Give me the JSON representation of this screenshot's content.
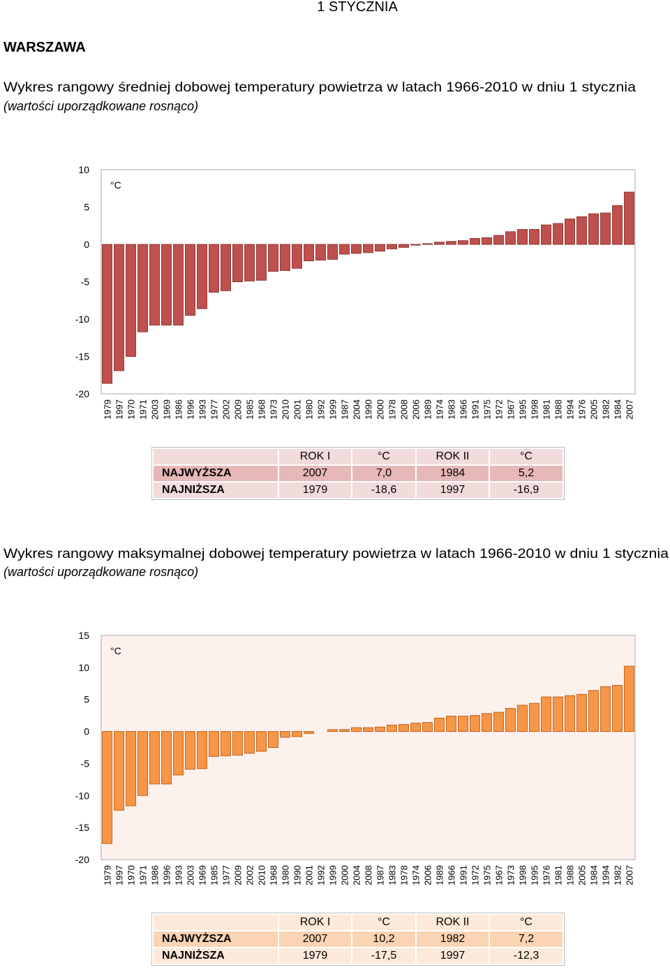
{
  "header": {
    "title": "1 STYCZNIA",
    "city": "WARSZAWA"
  },
  "chart_data": [
    {
      "type": "bar",
      "title": "Wykres rangowy średniej dobowej temperatury powietrza w latach 1966-2010 w dniu 1 stycznia",
      "subtitle": "(wartości uporządkowane rosnąco)",
      "unit_label": "°C",
      "categories": [
        "1979",
        "1997",
        "1970",
        "1971",
        "2003",
        "1969",
        "1986",
        "1996",
        "1993",
        "1977",
        "2002",
        "2009",
        "1985",
        "1968",
        "1973",
        "2010",
        "2001",
        "1980",
        "1992",
        "1999",
        "1987",
        "2004",
        "1990",
        "2000",
        "1978",
        "2008",
        "2006",
        "1989",
        "1974",
        "1983",
        "1966",
        "1991",
        "1975",
        "1972",
        "1967",
        "1995",
        "1998",
        "1981",
        "1988",
        "1994",
        "1976",
        "2005",
        "1982",
        "1984",
        "2007"
      ],
      "values": [
        -18.6,
        -16.9,
        -15.0,
        -11.7,
        -10.8,
        -10.8,
        -10.8,
        -9.5,
        -8.6,
        -6.4,
        -6.2,
        -5.0,
        -4.9,
        -4.8,
        -3.6,
        -3.5,
        -3.2,
        -2.2,
        -2.1,
        -2.0,
        -1.3,
        -1.2,
        -1.1,
        -0.9,
        -0.6,
        -0.4,
        -0.1,
        0.1,
        0.3,
        0.4,
        0.5,
        0.8,
        0.9,
        1.2,
        1.7,
        2.0,
        2.0,
        2.6,
        2.8,
        3.4,
        3.7,
        4.1,
        4.2,
        5.2,
        7.0
      ],
      "color": "#c0504d",
      "ylim": [
        -20,
        10
      ],
      "yticks": [
        10,
        5,
        0,
        -5,
        -10,
        -15,
        -20
      ]
    },
    {
      "type": "bar",
      "title": "Wykres rangowy maksymalnej dobowej temperatury powietrza w latach 1966-2010 w dniu 1 stycznia",
      "subtitle": "(wartości uporządkowane rosnąco)",
      "unit_label": "°C",
      "categories": [
        "1979",
        "1997",
        "1970",
        "1971",
        "1986",
        "1996",
        "1993",
        "2003",
        "1969",
        "1985",
        "1977",
        "2009",
        "2002",
        "2010",
        "1968",
        "1980",
        "1990",
        "2001",
        "1992",
        "1999",
        "2000",
        "2004",
        "2008",
        "1987",
        "1983",
        "1978",
        "1974",
        "2006",
        "1989",
        "1966",
        "1991",
        "1972",
        "1975",
        "1967",
        "1973",
        "1998",
        "1995",
        "1976",
        "1981",
        "1988",
        "2005",
        "1984",
        "1994",
        "1982",
        "2007"
      ],
      "values": [
        -17.5,
        -12.3,
        -11.6,
        -10.0,
        -8.2,
        -8.2,
        -6.8,
        -5.9,
        -5.8,
        -3.9,
        -3.8,
        -3.7,
        -3.4,
        -3.1,
        -2.5,
        -0.9,
        -0.8,
        -0.3,
        0.0,
        0.3,
        0.3,
        0.6,
        0.6,
        0.7,
        1.0,
        1.1,
        1.3,
        1.4,
        2.1,
        2.4,
        2.4,
        2.5,
        2.8,
        3.0,
        3.6,
        4.1,
        4.4,
        5.4,
        5.4,
        5.6,
        5.8,
        6.4,
        7.0,
        7.2,
        10.2
      ],
      "color": "#f79646",
      "ylim": [
        -20,
        15
      ],
      "yticks": [
        15,
        10,
        5,
        0,
        -5,
        -10,
        -15,
        -20
      ]
    }
  ],
  "tables": [
    {
      "header": [
        "ROK I",
        "°C",
        "ROK II",
        "°C"
      ],
      "rows": [
        [
          "NAJWYŻSZA",
          "2007",
          "7,0",
          "1984",
          "5,2"
        ],
        [
          "NAJNIŻSZA",
          "1979",
          "-18,6",
          "1997",
          "-16,9"
        ]
      ]
    },
    {
      "header": [
        "ROK I",
        "°C",
        "ROK II",
        "°C"
      ],
      "rows": [
        [
          "NAJWYŻSZA",
          "2007",
          "10,2",
          "1982",
          "7,2"
        ],
        [
          "NAJNIŻSZA",
          "1979",
          "-17,5",
          "1997",
          "-12,3"
        ]
      ]
    }
  ]
}
